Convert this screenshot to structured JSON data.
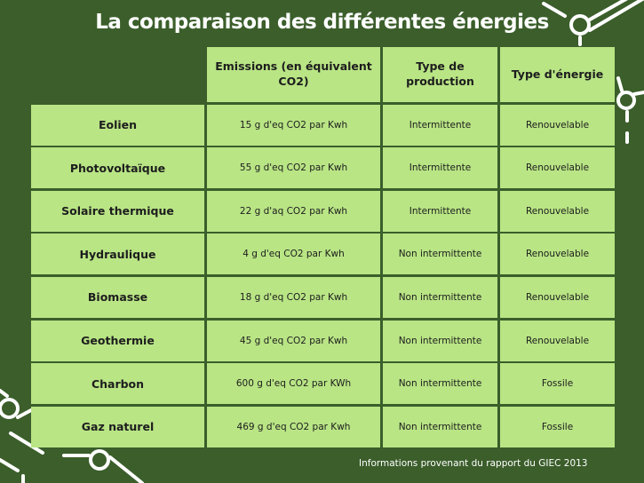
{
  "title": "La comparaison des différentes énergies",
  "headers": [
    "",
    "Emissions (en équivalent CO2)",
    "Type de production",
    "Type d'énergie"
  ],
  "rows": [
    {
      "energy": "Eolien",
      "emissions": "15 g d'eq CO2 par Kwh",
      "production": "Intermittente",
      "type": "Renouvelable"
    },
    {
      "energy": "Photovoltaïque",
      "emissions": "55 g d'eq CO2 par Kwh",
      "production": "Intermittente",
      "type": "Renouvelable"
    },
    {
      "energy": "Solaire thermique",
      "emissions": "22 g d'aq CO2 par Kwh",
      "production": "Intermittente",
      "type": "Renouvelable"
    },
    {
      "energy": "Hydraulique",
      "emissions": "4 g d'eq CO2 par Kwh",
      "production": "Non intermittente",
      "type": "Renouvelable"
    },
    {
      "energy": "Biomasse",
      "emissions": "18 g d'eq CO2 par Kwh",
      "production": "Non intermittente",
      "type": "Renouvelable"
    },
    {
      "energy": "Geothermie",
      "emissions": "45 g d'eq CO2 par Kwh",
      "production": "Non intermittente",
      "type": "Renouvelable"
    },
    {
      "energy": "Charbon",
      "emissions": "600 g d'eq CO2 par KWh",
      "production": "Non intermittente",
      "type": "Fossile"
    },
    {
      "energy": "Gaz naturel",
      "emissions": "469 g d'eq CO2 par Kwh",
      "production": "Non intermittente",
      "type": "Fossile"
    }
  ],
  "footer": "Informations provenant du rapport du GIEC 2013",
  "colors": {
    "background": "#3b5e2b",
    "cell": "#b9e585",
    "text": "#1d1d1d",
    "title": "#ffffff"
  }
}
